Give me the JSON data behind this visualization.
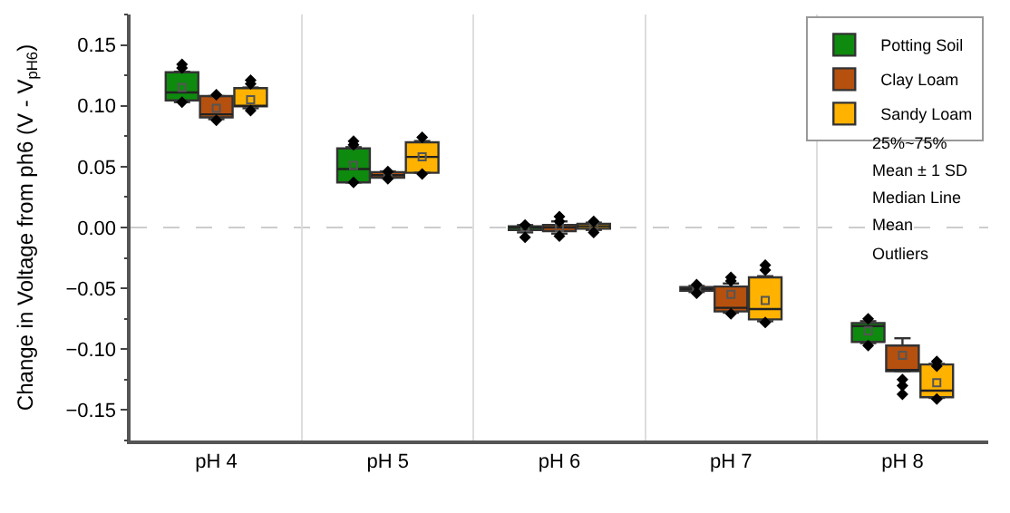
{
  "chart_data": {
    "type": "box",
    "ylabel": "Change in Voltage from ph6 (V - V$_{pH6}$)",
    "categories": [
      "pH 4",
      "pH 5",
      "pH 6",
      "pH 7",
      "pH 8"
    ],
    "ylim": [
      -0.175,
      0.175
    ],
    "yticks": [
      {
        "value": -0.15,
        "label": "−0.15"
      },
      {
        "value": -0.1,
        "label": "−0.10"
      },
      {
        "value": -0.05,
        "label": "−0.05"
      },
      {
        "value": 0,
        "label": "0.00"
      },
      {
        "value": 0.05,
        "label": "0.05"
      },
      {
        "value": 0.1,
        "label": "0.10"
      },
      {
        "value": 0.15,
        "label": "0.15"
      }
    ],
    "grid": "x",
    "legend": "top right",
    "annotations": [
      "25%~75%",
      "Mean ± 1 SD",
      "Median Line",
      "Mean",
      "Outliers"
    ],
    "ref_lines": [
      {
        "axis": "y",
        "value": 0,
        "label": null,
        "color": "#cccccc",
        "line_style": "dashed"
      }
    ],
    "series": [
      {
        "name": "Potting Soil",
        "color": "#0e8a0e",
        "boxes": [
          {
            "low": 0.103,
            "q1": 0.1045,
            "median": 0.111,
            "q3": 0.1275,
            "high": 0.128,
            "mean": 0.115,
            "outliers": [
              0.134,
              0.131,
              0.103
            ]
          },
          {
            "low": 0.037,
            "q1": 0.037,
            "median": 0.048,
            "q3": 0.065,
            "high": 0.066,
            "mean": 0.051,
            "outliers": [
              0.071,
              0.068,
              0.037
            ]
          },
          {
            "low": -0.004,
            "q1": -0.002,
            "median": 0.0,
            "q3": 0.001,
            "high": 0.002,
            "mean": 0.0,
            "outliers": [
              -0.008,
              0.002
            ]
          },
          {
            "low": -0.053,
            "q1": -0.052,
            "median": -0.0505,
            "q3": -0.049,
            "high": -0.048,
            "mean": -0.0505,
            "outliers": [
              -0.047,
              -0.054
            ]
          },
          {
            "low": -0.095,
            "q1": -0.094,
            "median": -0.081,
            "q3": -0.0785,
            "high": -0.077,
            "mean": -0.085,
            "outliers": [
              -0.075,
              -0.097
            ]
          }
        ]
      },
      {
        "name": "Clay Loam",
        "color": "#b5500f",
        "boxes": [
          {
            "low": 0.089,
            "q1": 0.0905,
            "median": 0.093,
            "q3": 0.108,
            "high": 0.108,
            "mean": 0.098,
            "outliers": [
              0.109,
              0.088
            ]
          },
          {
            "low": 0.041,
            "q1": 0.041,
            "median": 0.043,
            "q3": 0.0455,
            "high": 0.046,
            "mean": 0.043,
            "outliers": [
              0.046,
              0.04
            ]
          },
          {
            "low": -0.005,
            "q1": -0.003,
            "median": 0.0,
            "q3": 0.002,
            "high": 0.005,
            "mean": 0.0,
            "outliers": [
              0.009,
              0.005,
              -0.007
            ]
          },
          {
            "low": -0.07,
            "q1": -0.069,
            "median": -0.066,
            "q3": -0.0485,
            "high": -0.046,
            "mean": -0.055,
            "outliers": [
              -0.041,
              -0.044,
              -0.071
            ]
          },
          {
            "low": -0.118,
            "q1": -0.118,
            "median": -0.117,
            "q3": -0.097,
            "high": -0.091,
            "mean": -0.105,
            "outliers": [
              -0.125,
              -0.13,
              -0.137
            ]
          }
        ]
      },
      {
        "name": "Sandy Loam",
        "color": "#ffb300",
        "boxes": [
          {
            "low": 0.098,
            "q1": 0.0995,
            "median": 0.1,
            "q3": 0.1145,
            "high": 0.115,
            "mean": 0.105,
            "outliers": [
              0.121,
              0.118,
              0.096
            ]
          },
          {
            "low": 0.045,
            "q1": 0.045,
            "median": 0.058,
            "q3": 0.07,
            "high": 0.071,
            "mean": 0.058,
            "outliers": [
              0.074,
              0.044
            ]
          },
          {
            "low": -0.002,
            "q1": -0.001,
            "median": 0.001,
            "q3": 0.003,
            "high": 0.004,
            "mean": 0.001,
            "outliers": [
              0.005,
              -0.004
            ]
          },
          {
            "low": -0.077,
            "q1": -0.0755,
            "median": -0.067,
            "q3": -0.041,
            "high": -0.04,
            "mean": -0.06,
            "outliers": [
              -0.031,
              -0.035,
              -0.078
            ]
          },
          {
            "low": -0.14,
            "q1": -0.1395,
            "median": -0.134,
            "q3": -0.1125,
            "high": -0.112,
            "mean": -0.1275,
            "outliers": [
              -0.11,
              -0.114,
              -0.141
            ]
          }
        ]
      }
    ]
  }
}
